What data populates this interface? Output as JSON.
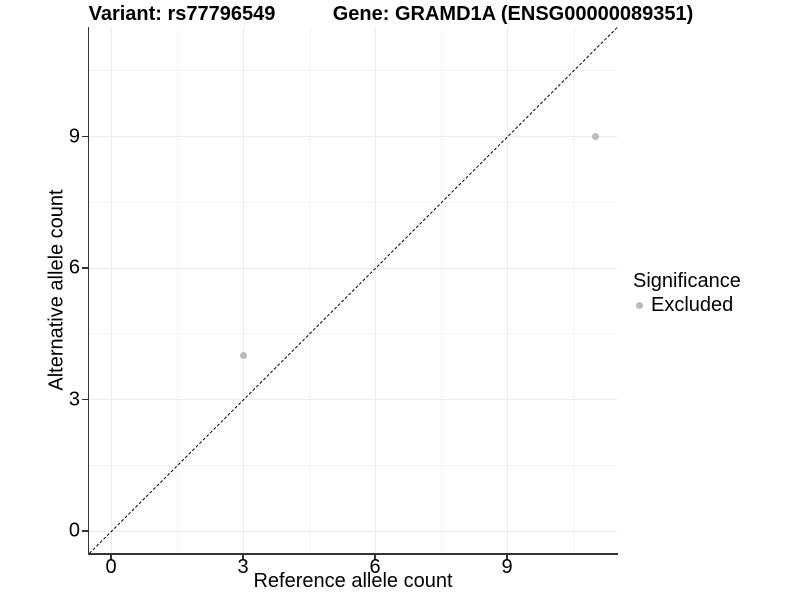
{
  "chart_data": {
    "type": "scatter",
    "title_left": "Variant: rs77796549",
    "title_right": "Gene: GRAMD1A (ENSG00000089351)",
    "xlabel": "Reference allele count",
    "ylabel": "Alternative allele count",
    "xlim": [
      -0.5,
      11.5
    ],
    "ylim": [
      -0.5,
      11.5
    ],
    "x_major_ticks": [
      0,
      3,
      6,
      9
    ],
    "y_major_ticks": [
      0,
      3,
      6,
      9
    ],
    "x_minor_gridlines": [
      1.5,
      4.5,
      7.5,
      10.5
    ],
    "y_minor_gridlines": [
      1.5,
      4.5,
      7.5,
      10.5
    ],
    "grid": true,
    "reference_line": {
      "style": "dashed",
      "slope": 1,
      "intercept": 0
    },
    "series": [
      {
        "name": "Excluded",
        "color": "#bcbcbc",
        "points": [
          {
            "x": 3,
            "y": 4
          },
          {
            "x": 11,
            "y": 9
          }
        ]
      }
    ],
    "legend": {
      "position": "right",
      "title": "Significance",
      "items": [
        {
          "label": "Excluded",
          "color": "#bcbcbc"
        }
      ]
    }
  },
  "colors": {
    "background": "#ffffff",
    "text": "#000000",
    "axis_line": "#333333",
    "grid_major": "#ebebeb",
    "grid_minor": "#f4f4f4",
    "reference_line": "#000000",
    "point": "#bcbcbc"
  }
}
